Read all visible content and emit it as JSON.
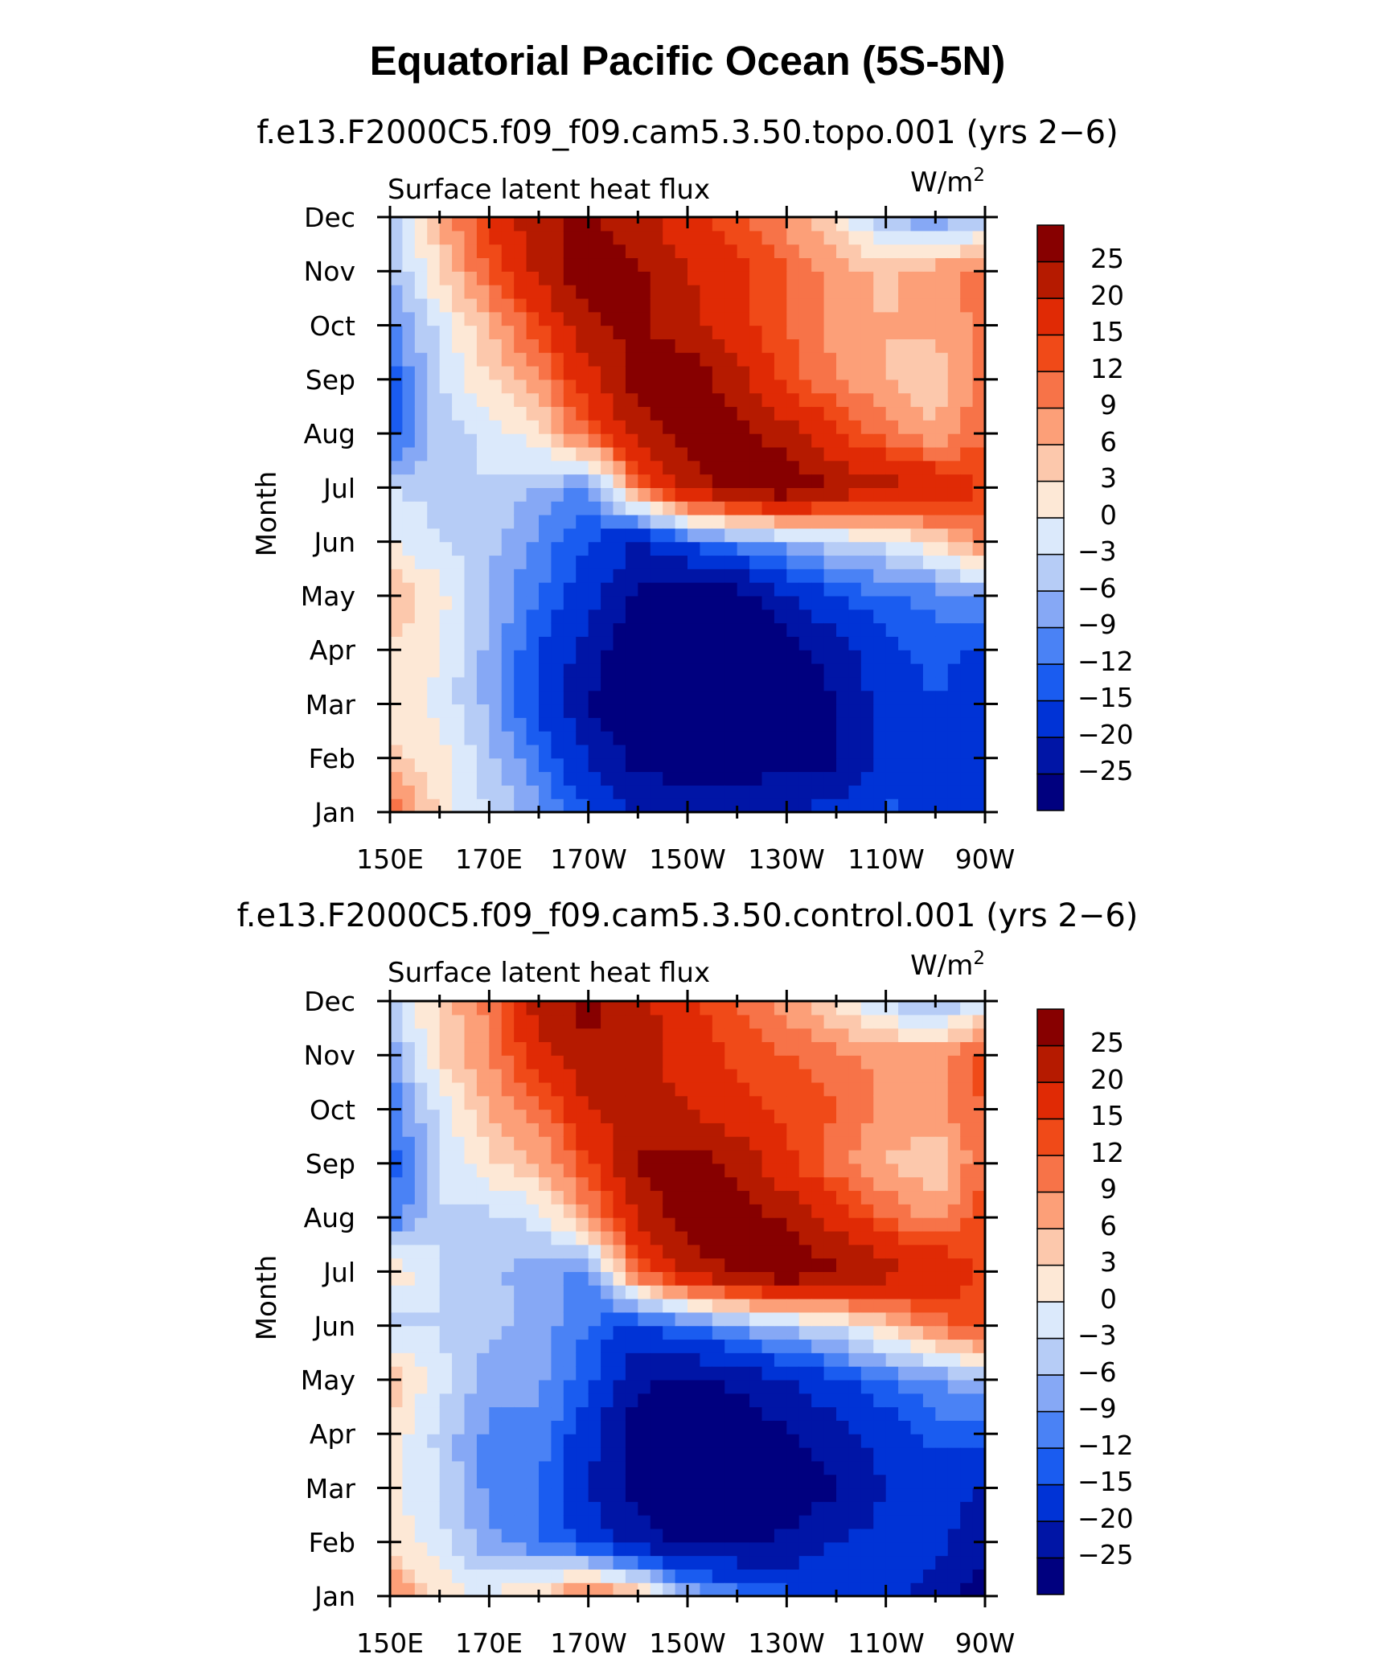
{
  "title": "Equatorial Pacific Ocean (5S-5N)",
  "colors": [
    "#00007f",
    "#0015a6",
    "#0033d6",
    "#1a5cf0",
    "#4a82f5",
    "#86a8f5",
    "#b6ccf6",
    "#dbe9fb",
    "#fde8d6",
    "#fcc8ac",
    "#fc9f78",
    "#f77348",
    "#f04a18",
    "#e02a05",
    "#b51a00",
    "#870000"
  ],
  "chart_data": [
    {
      "type": "heatmap",
      "title": "f.e13.F2000C5.f09_f09.cam5.3.50.topo.001 (yrs 2−6)",
      "left_label": "Surface latent heat flux",
      "right_label": "W/m",
      "units_sup": "2",
      "xlabel": "",
      "ylabel": "Month",
      "x_ticks": [
        "150E",
        "170E",
        "170W",
        "150W",
        "130W",
        "110W",
        "90W"
      ],
      "y_ticks": [
        "Jan",
        "Feb",
        "Mar",
        "Apr",
        "May",
        "Jun",
        "Jul",
        "Aug",
        "Sep",
        "Oct",
        "Nov",
        "Dec"
      ],
      "xlim": [
        150,
        270
      ],
      "legend_levels": [
        "−25",
        "−20",
        "−15",
        "−12",
        "−9",
        "−6",
        "−3",
        "0",
        "3",
        "6",
        "9",
        "12",
        "15",
        "20",
        "25"
      ],
      "x": [
        150,
        160,
        170,
        180,
        190,
        200,
        210,
        220,
        230,
        240,
        250,
        260,
        270
      ],
      "z": [
        [
          12,
          2,
          -3,
          -8,
          -14,
          -20,
          -22,
          -22,
          -20,
          -18,
          -14,
          -16,
          -20
        ],
        [
          4,
          1,
          -5,
          -12,
          -20,
          -27,
          -28,
          -28,
          -27,
          -26,
          -18,
          -16,
          -20
        ],
        [
          2,
          -1,
          -7,
          -16,
          -25,
          -30,
          -32,
          -30,
          -28,
          -26,
          -18,
          -15,
          -18
        ],
        [
          3,
          0,
          -7,
          -15,
          -22,
          -30,
          -32,
          -30,
          -28,
          -22,
          -16,
          -14,
          -16
        ],
        [
          6,
          1,
          -6,
          -12,
          -18,
          -26,
          -30,
          -28,
          -20,
          -15,
          -12,
          -11,
          -8
        ],
        [
          0,
          -3,
          -5,
          -10,
          -15,
          -20,
          -14,
          -10,
          -7,
          -4,
          -2,
          3,
          10
        ],
        [
          -3,
          -4,
          -3,
          -6,
          -10,
          10,
          22,
          28,
          30,
          24,
          22,
          20,
          14
        ],
        [
          -14,
          -5,
          -2,
          2,
          12,
          22,
          28,
          28,
          22,
          16,
          10,
          6,
          12
        ],
        [
          -14,
          -3,
          3,
          8,
          18,
          28,
          28,
          22,
          14,
          9,
          6,
          4,
          10
        ],
        [
          -10,
          -2,
          6,
          14,
          24,
          26,
          22,
          16,
          12,
          8,
          6,
          7,
          10
        ],
        [
          -6,
          3,
          12,
          22,
          28,
          26,
          20,
          16,
          12,
          8,
          5,
          8,
          10
        ],
        [
          -4,
          6,
          15,
          24,
          26,
          22,
          16,
          12,
          8,
          2,
          -6,
          -9,
          -5
        ]
      ]
    },
    {
      "type": "heatmap",
      "title": "f.e13.F2000C5.f09_f09.cam5.3.50.control.001 (yrs 2−6)",
      "left_label": "Surface latent heat flux",
      "right_label": "W/m",
      "units_sup": "2",
      "xlabel": "",
      "ylabel": "Month",
      "x_ticks": [
        "150E",
        "170E",
        "170W",
        "150W",
        "130W",
        "110W",
        "90W"
      ],
      "y_ticks": [
        "Jan",
        "Feb",
        "Mar",
        "Apr",
        "May",
        "Jun",
        "Jul",
        "Aug",
        "Sep",
        "Oct",
        "Nov",
        "Dec"
      ],
      "xlim": [
        150,
        270
      ],
      "legend_levels": [
        "−25",
        "−20",
        "−15",
        "−12",
        "−9",
        "−6",
        "−3",
        "0",
        "3",
        "6",
        "9",
        "12",
        "15",
        "20",
        "25"
      ],
      "x": [
        150,
        160,
        170,
        180,
        190,
        200,
        210,
        220,
        230,
        240,
        250,
        260,
        270
      ],
      "z": [
        [
          10,
          2,
          0,
          4,
          12,
          6,
          -6,
          -10,
          -14,
          -16,
          -18,
          -22,
          -28
        ],
        [
          2,
          -2,
          -8,
          -12,
          -16,
          -22,
          -26,
          -26,
          -24,
          -20,
          -18,
          -18,
          -24
        ],
        [
          1,
          -3,
          -10,
          -12,
          -20,
          -28,
          -30,
          -28,
          -28,
          -26,
          -20,
          -18,
          -20
        ],
        [
          2,
          -4,
          -10,
          -10,
          -18,
          -28,
          -30,
          -28,
          -26,
          -22,
          -18,
          -14,
          -14
        ],
        [
          5,
          -2,
          -8,
          -8,
          -14,
          -24,
          -26,
          -24,
          -20,
          -16,
          -12,
          -9,
          -6
        ],
        [
          -4,
          -3,
          -5,
          -7,
          -12,
          -16,
          -12,
          -8,
          -5,
          -2,
          4,
          10,
          14
        ],
        [
          3,
          -3,
          -5,
          -8,
          -10,
          12,
          22,
          26,
          30,
          26,
          22,
          20,
          14
        ],
        [
          -12,
          -3,
          -4,
          -2,
          8,
          20,
          28,
          28,
          24,
          18,
          12,
          8,
          14
        ],
        [
          -14,
          -3,
          2,
          6,
          14,
          26,
          28,
          24,
          16,
          10,
          6,
          3,
          12
        ],
        [
          -12,
          -2,
          6,
          10,
          20,
          22,
          20,
          16,
          14,
          12,
          8,
          8,
          12
        ],
        [
          -8,
          3,
          9,
          18,
          24,
          22,
          18,
          14,
          12,
          10,
          8,
          8,
          14
        ],
        [
          -4,
          4,
          10,
          22,
          27,
          22,
          16,
          12,
          8,
          2,
          -4,
          -8,
          -2
        ]
      ]
    }
  ]
}
